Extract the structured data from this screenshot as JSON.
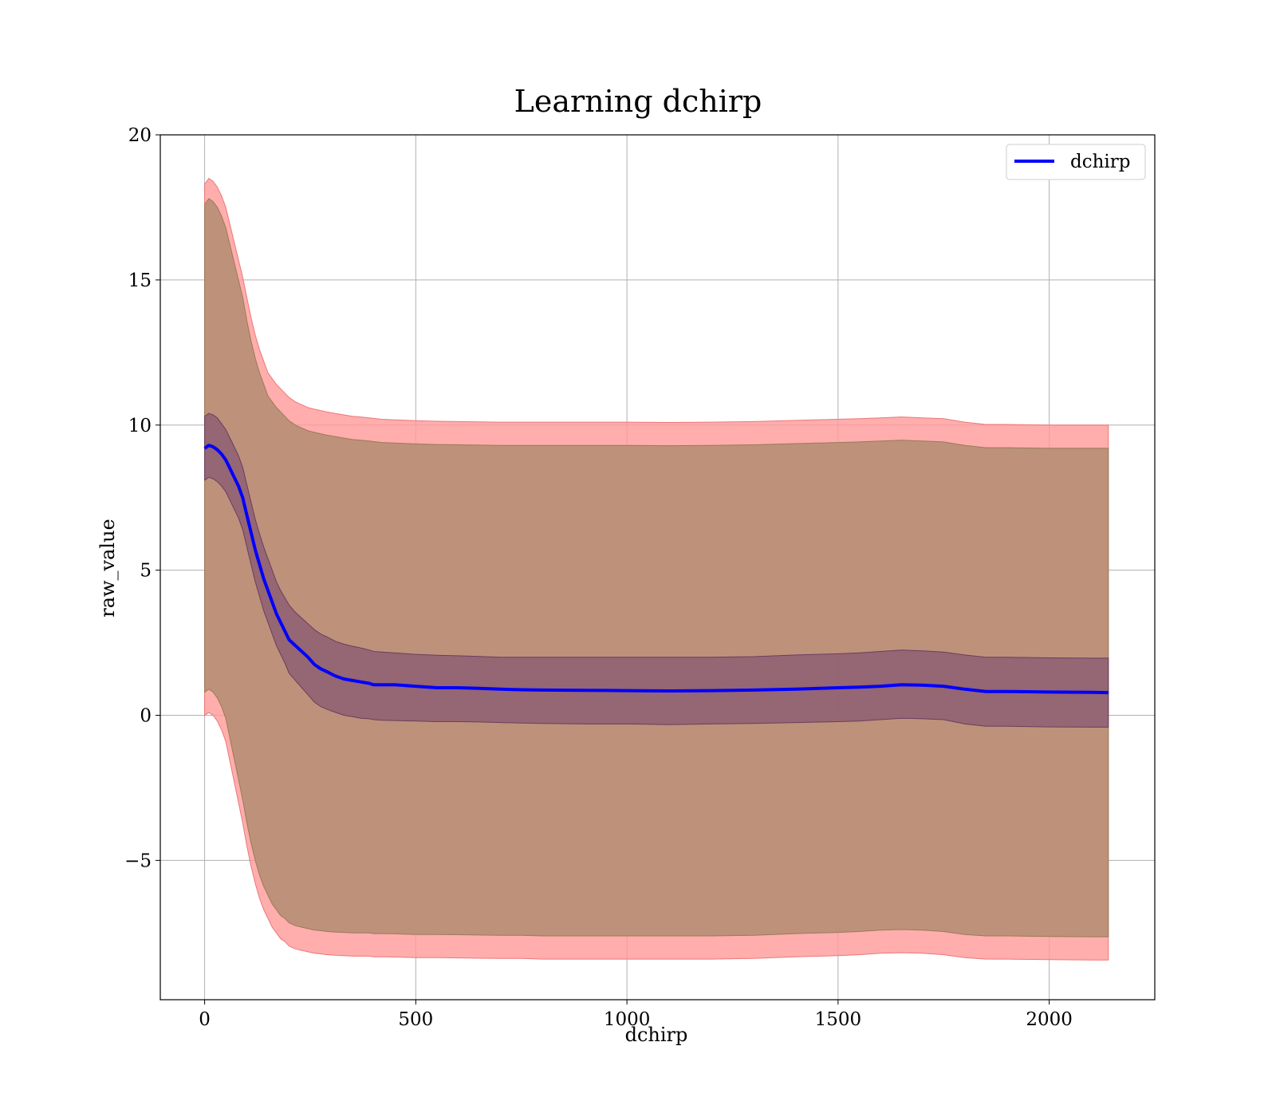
{
  "chart_data": {
    "type": "line",
    "title": "Learning dchirp",
    "xlabel": "dchirp",
    "ylabel": "raw_value",
    "xlim": [
      -105,
      2250
    ],
    "ylim": [
      -9.8,
      20
    ],
    "xticks": [
      0,
      500,
      1000,
      1500,
      2000
    ],
    "yticks": [
      -5,
      0,
      5,
      10,
      15,
      20
    ],
    "xtick_labels": [
      "0",
      "500",
      "1000",
      "1500",
      "2000"
    ],
    "ytick_labels": [
      "−5",
      "0",
      "5",
      "10",
      "15",
      "20"
    ],
    "grid": true,
    "legend": {
      "placement": "top-right",
      "entries": [
        "dchirp"
      ]
    },
    "series": [
      {
        "name": "dchirp",
        "color": "#0000ff",
        "x": [
          0,
          10,
          20,
          30,
          40,
          50,
          60,
          70,
          80,
          90,
          100,
          110,
          120,
          130,
          140,
          150,
          160,
          170,
          180,
          190,
          200,
          215,
          230,
          245,
          260,
          275,
          290,
          310,
          330,
          350,
          370,
          390,
          400,
          420,
          450,
          500,
          550,
          600,
          650,
          700,
          750,
          800,
          900,
          1000,
          1100,
          1200,
          1300,
          1400,
          1500,
          1550,
          1600,
          1650,
          1700,
          1750,
          1800,
          1850,
          1900,
          2000,
          2100,
          2140
        ],
        "y": [
          9.2,
          9.3,
          9.25,
          9.15,
          9.0,
          8.8,
          8.5,
          8.2,
          7.9,
          7.5,
          6.9,
          6.3,
          5.7,
          5.2,
          4.7,
          4.3,
          3.9,
          3.5,
          3.2,
          2.9,
          2.6,
          2.4,
          2.2,
          2.0,
          1.75,
          1.6,
          1.5,
          1.35,
          1.25,
          1.2,
          1.15,
          1.1,
          1.05,
          1.05,
          1.05,
          1.0,
          0.95,
          0.95,
          0.93,
          0.9,
          0.88,
          0.87,
          0.86,
          0.85,
          0.84,
          0.85,
          0.87,
          0.9,
          0.95,
          0.97,
          1.0,
          1.05,
          1.04,
          1.0,
          0.9,
          0.82,
          0.82,
          0.8,
          0.79,
          0.78
        ],
        "inner_band_upper": [
          10.3,
          10.4,
          10.35,
          10.25,
          10.05,
          9.85,
          9.55,
          9.25,
          8.95,
          8.55,
          7.95,
          7.35,
          6.75,
          6.25,
          5.8,
          5.4,
          5.0,
          4.6,
          4.3,
          4.05,
          3.8,
          3.55,
          3.35,
          3.15,
          2.95,
          2.8,
          2.7,
          2.55,
          2.45,
          2.38,
          2.32,
          2.25,
          2.2,
          2.18,
          2.15,
          2.1,
          2.07,
          2.05,
          2.03,
          2.0,
          2.0,
          2.0,
          2.0,
          2.0,
          2.0,
          2.0,
          2.02,
          2.08,
          2.12,
          2.15,
          2.2,
          2.25,
          2.22,
          2.18,
          2.08,
          2.0,
          2.0,
          1.98,
          1.97,
          1.97
        ],
        "inner_band_lower": [
          8.1,
          8.2,
          8.15,
          8.05,
          7.9,
          7.7,
          7.4,
          7.1,
          6.8,
          6.4,
          5.8,
          5.2,
          4.6,
          4.1,
          3.6,
          3.2,
          2.8,
          2.4,
          2.1,
          1.8,
          1.45,
          1.2,
          0.95,
          0.7,
          0.45,
          0.3,
          0.2,
          0.1,
          0.0,
          -0.05,
          -0.1,
          -0.12,
          -0.15,
          -0.17,
          -0.18,
          -0.2,
          -0.22,
          -0.22,
          -0.23,
          -0.25,
          -0.27,
          -0.28,
          -0.3,
          -0.3,
          -0.32,
          -0.3,
          -0.28,
          -0.25,
          -0.22,
          -0.2,
          -0.15,
          -0.1,
          -0.12,
          -0.15,
          -0.3,
          -0.38,
          -0.38,
          -0.4,
          -0.41,
          -0.41
        ],
        "mid_band_upper": [
          17.6,
          17.8,
          17.7,
          17.5,
          17.2,
          16.8,
          16.2,
          15.6,
          15.0,
          14.4,
          13.6,
          12.9,
          12.3,
          11.8,
          11.4,
          11.0,
          10.8,
          10.6,
          10.45,
          10.3,
          10.15,
          10.0,
          9.9,
          9.8,
          9.75,
          9.7,
          9.65,
          9.6,
          9.55,
          9.5,
          9.48,
          9.45,
          9.43,
          9.4,
          9.38,
          9.35,
          9.33,
          9.32,
          9.31,
          9.3,
          9.3,
          9.3,
          9.3,
          9.3,
          9.29,
          9.3,
          9.32,
          9.36,
          9.4,
          9.42,
          9.45,
          9.48,
          9.45,
          9.42,
          9.3,
          9.22,
          9.22,
          9.2,
          9.2,
          9.2
        ],
        "mid_band_lower": [
          0.8,
          0.9,
          0.8,
          0.6,
          0.3,
          -0.1,
          -0.8,
          -1.5,
          -2.2,
          -2.9,
          -3.7,
          -4.4,
          -5.0,
          -5.5,
          -5.9,
          -6.2,
          -6.5,
          -6.7,
          -6.9,
          -7.0,
          -7.15,
          -7.25,
          -7.3,
          -7.35,
          -7.4,
          -7.42,
          -7.45,
          -7.47,
          -7.48,
          -7.5,
          -7.5,
          -7.5,
          -7.52,
          -7.52,
          -7.53,
          -7.55,
          -7.55,
          -7.56,
          -7.57,
          -7.58,
          -7.58,
          -7.6,
          -7.6,
          -7.6,
          -7.6,
          -7.6,
          -7.58,
          -7.52,
          -7.48,
          -7.45,
          -7.4,
          -7.38,
          -7.4,
          -7.45,
          -7.55,
          -7.6,
          -7.6,
          -7.62,
          -7.63,
          -7.63
        ],
        "outer_band_upper": [
          18.3,
          18.5,
          18.4,
          18.2,
          17.9,
          17.5,
          16.9,
          16.3,
          15.7,
          15.1,
          14.4,
          13.7,
          13.1,
          12.6,
          12.2,
          11.8,
          11.6,
          11.4,
          11.25,
          11.1,
          10.95,
          10.8,
          10.7,
          10.6,
          10.55,
          10.5,
          10.45,
          10.4,
          10.35,
          10.3,
          10.28,
          10.25,
          10.23,
          10.2,
          10.18,
          10.15,
          10.13,
          10.12,
          10.11,
          10.1,
          10.1,
          10.1,
          10.1,
          10.1,
          10.09,
          10.1,
          10.12,
          10.16,
          10.2,
          10.22,
          10.25,
          10.28,
          10.25,
          10.22,
          10.1,
          10.02,
          10.02,
          10.0,
          10.0,
          10.0
        ],
        "outer_band_lower": [
          0.0,
          0.1,
          0.0,
          -0.2,
          -0.5,
          -0.9,
          -1.6,
          -2.3,
          -3.0,
          -3.7,
          -4.5,
          -5.2,
          -5.8,
          -6.3,
          -6.7,
          -7.0,
          -7.3,
          -7.5,
          -7.7,
          -7.8,
          -7.95,
          -8.05,
          -8.1,
          -8.15,
          -8.2,
          -8.22,
          -8.25,
          -8.27,
          -8.28,
          -8.3,
          -8.3,
          -8.3,
          -8.32,
          -8.32,
          -8.33,
          -8.35,
          -8.35,
          -8.36,
          -8.37,
          -8.38,
          -8.38,
          -8.4,
          -8.4,
          -8.4,
          -8.4,
          -8.4,
          -8.38,
          -8.32,
          -8.28,
          -8.25,
          -8.2,
          -8.18,
          -8.2,
          -8.25,
          -8.35,
          -8.4,
          -8.4,
          -8.42,
          -8.43,
          -8.43
        ]
      }
    ],
    "band_colors": {
      "outer": "#ff9999",
      "mid": "#bb9077",
      "inner": "#7a4a6e"
    }
  }
}
